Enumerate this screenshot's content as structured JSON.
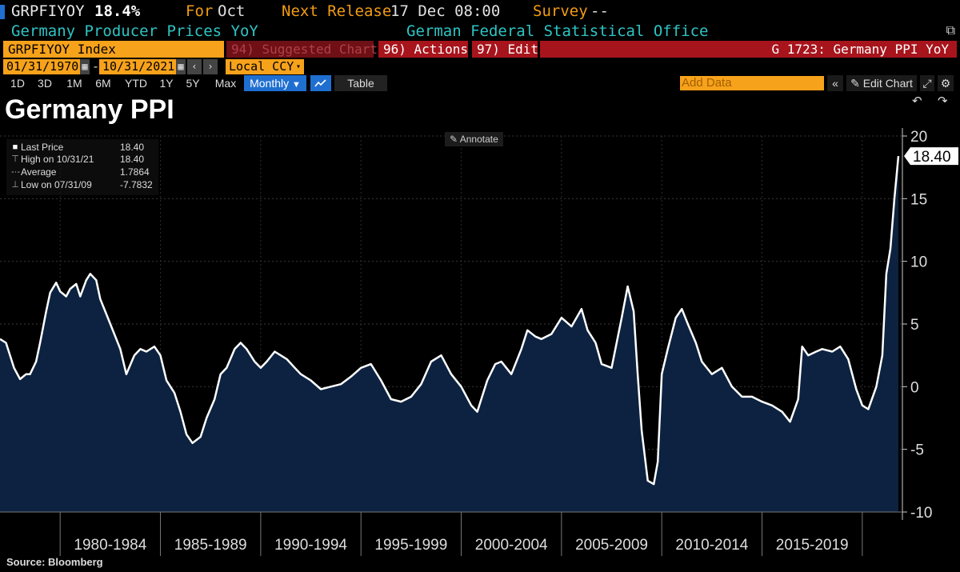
{
  "header": {
    "ticker": "GRPFIYOY",
    "last_value": "18.4%",
    "for_label": "For",
    "for_value": "Oct",
    "next_release_label": "Next Release",
    "next_release_value": "17 Dec 08:00",
    "survey_label": "Survey",
    "survey_value": "--",
    "description": "Germany Producer Prices YoY",
    "source_org": "German Federal Statistical Office",
    "popout_icon": "popout-icon"
  },
  "toolbar": {
    "security": "GRPFIYOY Index",
    "suggested_charts": "94) Suggested Charts",
    "actions": "96) Actions",
    "edit": "97) Edit",
    "chart_id": "G 1723: Germany PPI YoY",
    "start_date": "01/31/1970",
    "end_date": "10/31/2021",
    "date_separator": "-",
    "currency": "Local CCY",
    "ranges": [
      "1D",
      "3D",
      "1M",
      "6M",
      "YTD",
      "1Y",
      "5Y",
      "Max"
    ],
    "frequency": "Monthly",
    "table_label": "Table",
    "add_data_placeholder": "Add Data",
    "edit_chart": "Edit Chart"
  },
  "chart_title": "Germany PPI",
  "annotate_label": "Annotate",
  "legend": {
    "items": [
      {
        "name": "Last Price",
        "value": "18.40"
      },
      {
        "name": "High on 10/31/21",
        "value": "18.40"
      },
      {
        "name": "Average",
        "value": "1.7864"
      },
      {
        "name": "Low on 07/31/09",
        "value": "-7.7832"
      }
    ]
  },
  "source": "Source: Bloomberg",
  "colors": {
    "background": "#000000",
    "area_fill": "#0c2240",
    "line": "#ffffff",
    "accent_orange": "#f7a21b",
    "accent_red": "#a8141c",
    "accent_blue": "#1f6fd1",
    "text_cyan": "#2ec4c4"
  },
  "chart_data": {
    "type": "area",
    "title": "Germany PPI",
    "xlabel": "",
    "ylabel": "",
    "ylim": [
      -10,
      20
    ],
    "y_ticks": [
      -10,
      -5,
      0,
      5,
      10,
      15,
      20
    ],
    "y_axis_position": "right",
    "x_tick_labels": [
      "1980-1984",
      "1985-1989",
      "1990-1994",
      "1995-1999",
      "2000-2004",
      "2005-2009",
      "2010-2014",
      "2015-2019"
    ],
    "x_period_bounds": [
      1980,
      1985,
      1990,
      1995,
      2000,
      2005,
      2010,
      2015,
      2020
    ],
    "xlim": [
      1977.0,
      2022.0
    ],
    "last_value_label": "18.40",
    "grid": true,
    "series": [
      {
        "x": [
          1977.0,
          1977.3,
          1977.7,
          1978.0,
          1978.3,
          1978.5,
          1978.8,
          1979.0,
          1979.3,
          1979.5,
          1979.8,
          1980.0,
          1980.3,
          1980.5,
          1980.8,
          1981.0,
          1981.3,
          1981.5,
          1981.8,
          1982.0,
          1982.5,
          1983.0,
          1983.3,
          1983.7,
          1984.0,
          1984.3,
          1984.7,
          1985.0,
          1985.3,
          1985.7,
          1986.0,
          1986.3,
          1986.6,
          1987.0,
          1987.3,
          1987.7,
          1988.0,
          1988.3,
          1988.7,
          1989.0,
          1989.3,
          1989.7,
          1990.0,
          1990.3,
          1990.7,
          1991.0,
          1991.3,
          1991.7,
          1992.0,
          1992.5,
          1993.0,
          1993.5,
          1994.0,
          1994.5,
          1995.0,
          1995.5,
          1996.0,
          1996.5,
          1997.0,
          1997.5,
          1998.0,
          1998.5,
          1999.0,
          1999.5,
          2000.0,
          2000.5,
          2000.8,
          2001.0,
          2001.3,
          2001.7,
          2002.0,
          2002.5,
          2003.0,
          2003.3,
          2003.7,
          2004.0,
          2004.5,
          2005.0,
          2005.5,
          2006.0,
          2006.3,
          2006.7,
          2007.0,
          2007.5,
          2008.0,
          2008.3,
          2008.6,
          2008.8,
          2009.0,
          2009.3,
          2009.6,
          2009.8,
          2010.0,
          2010.3,
          2010.7,
          2011.0,
          2011.3,
          2011.7,
          2012.0,
          2012.5,
          2013.0,
          2013.5,
          2014.0,
          2014.5,
          2015.0,
          2015.5,
          2016.0,
          2016.4,
          2016.8,
          2017.0,
          2017.3,
          2017.7,
          2018.0,
          2018.5,
          2018.9,
          2019.3,
          2019.7,
          2020.0,
          2020.3,
          2020.7,
          2021.0,
          2021.2,
          2021.4,
          2021.6,
          2021.8
        ],
        "y": [
          3.8,
          3.5,
          1.5,
          0.6,
          1.0,
          1.0,
          2.0,
          3.5,
          6.0,
          7.5,
          8.3,
          7.6,
          7.2,
          7.8,
          8.2,
          7.2,
          8.5,
          9.0,
          8.5,
          7.0,
          5.0,
          3.0,
          1.0,
          2.5,
          3.0,
          2.8,
          3.2,
          2.5,
          0.5,
          -0.5,
          -2.0,
          -3.8,
          -4.5,
          -4.0,
          -2.5,
          -1.0,
          1.0,
          1.5,
          3.0,
          3.5,
          3.0,
          2.0,
          1.5,
          2.0,
          2.8,
          2.5,
          2.2,
          1.5,
          1.0,
          0.5,
          -0.2,
          0.0,
          0.2,
          0.8,
          1.5,
          1.8,
          0.5,
          -1.0,
          -1.2,
          -0.8,
          0.2,
          2.0,
          2.5,
          1.0,
          0.0,
          -1.5,
          -2.0,
          -1.0,
          0.5,
          1.8,
          2.0,
          1.0,
          3.0,
          4.5,
          4.0,
          3.8,
          4.2,
          5.5,
          4.8,
          6.2,
          4.5,
          3.5,
          1.8,
          1.5,
          5.5,
          8.0,
          6.0,
          1.0,
          -3.5,
          -7.5,
          -7.78,
          -6.0,
          1.0,
          3.0,
          5.5,
          6.2,
          5.0,
          3.5,
          2.0,
          1.0,
          1.5,
          0.0,
          -0.8,
          -0.8,
          -1.2,
          -1.5,
          -2.0,
          -2.8,
          -1.0,
          3.2,
          2.5,
          2.8,
          3.0,
          2.8,
          3.2,
          2.2,
          -0.2,
          -1.5,
          -1.8,
          0.0,
          2.5,
          9.0,
          11.0,
          15.0,
          18.4
        ]
      }
    ]
  }
}
